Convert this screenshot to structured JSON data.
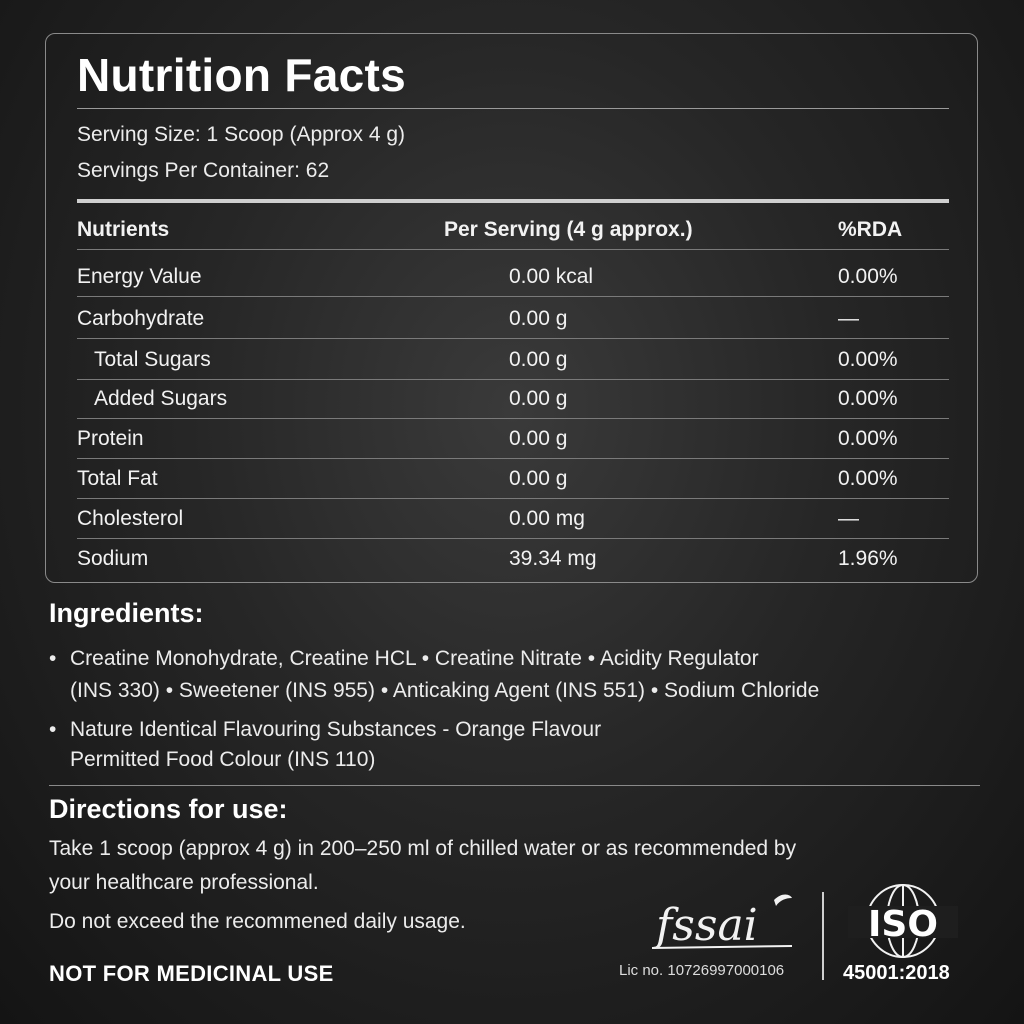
{
  "nutrition": {
    "title": "Nutrition Facts",
    "serving_size": "Serving Size: 1 Scoop (Approx 4 g)",
    "servings_per_container": "Servings Per Container: 62",
    "headers": [
      "Nutrients",
      "Per Serving (4 g approx.)",
      "%RDA"
    ],
    "rows": [
      {
        "name": "Energy Value",
        "per_serving": "0.00 kcal",
        "rda": "0.00%"
      },
      {
        "name": "Carbohydrate",
        "per_serving": "0.00 g",
        "rda": "—"
      },
      {
        "name": "Total Sugars",
        "per_serving": "0.00 g",
        "rda": "0.00%"
      },
      {
        "name": "Added Sugars",
        "per_serving": "0.00 g",
        "rda": "0.00%"
      },
      {
        "name": "Protein",
        "per_serving": "0.00 g",
        "rda": "0.00%"
      },
      {
        "name": "Total Fat",
        "per_serving": "0.00 g",
        "rda": "0.00%"
      },
      {
        "name": "Cholesterol",
        "per_serving": "0.00 mg",
        "rda": "—"
      },
      {
        "name": "Sodium",
        "per_serving": "39.34 mg",
        "rda": "1.96%"
      }
    ]
  },
  "ingredients": {
    "title": "Ingredients:",
    "bullet": "•",
    "item1_line1": "Creatine Monohydrate, Creatine HCL • Creatine Nitrate  • Acidity Regulator",
    "item1_line2": "(INS 330) • Sweetener (INS 955) • Anticaking Agent (INS 551) • Sodium Chloride",
    "item2_line1": "Nature Identical Flavouring Substances - Orange Flavour",
    "item2_line2": "Permitted Food Colour (INS 110)"
  },
  "directions": {
    "title": "Directions for use:",
    "line1": "Take 1 scoop (approx 4 g) in 200–250 ml of chilled water or as recommended by",
    "line2": "your healthcare professional.",
    "line3": "Do not exceed the recommened daily usage."
  },
  "footer": {
    "not_medicinal": "NOT FOR MEDICINAL USE",
    "fssai_logo_text": "fssai",
    "fssai_license": "Lic no. 10726997000106",
    "iso_logo_text": "ISO",
    "iso_number": "45001:2018"
  }
}
